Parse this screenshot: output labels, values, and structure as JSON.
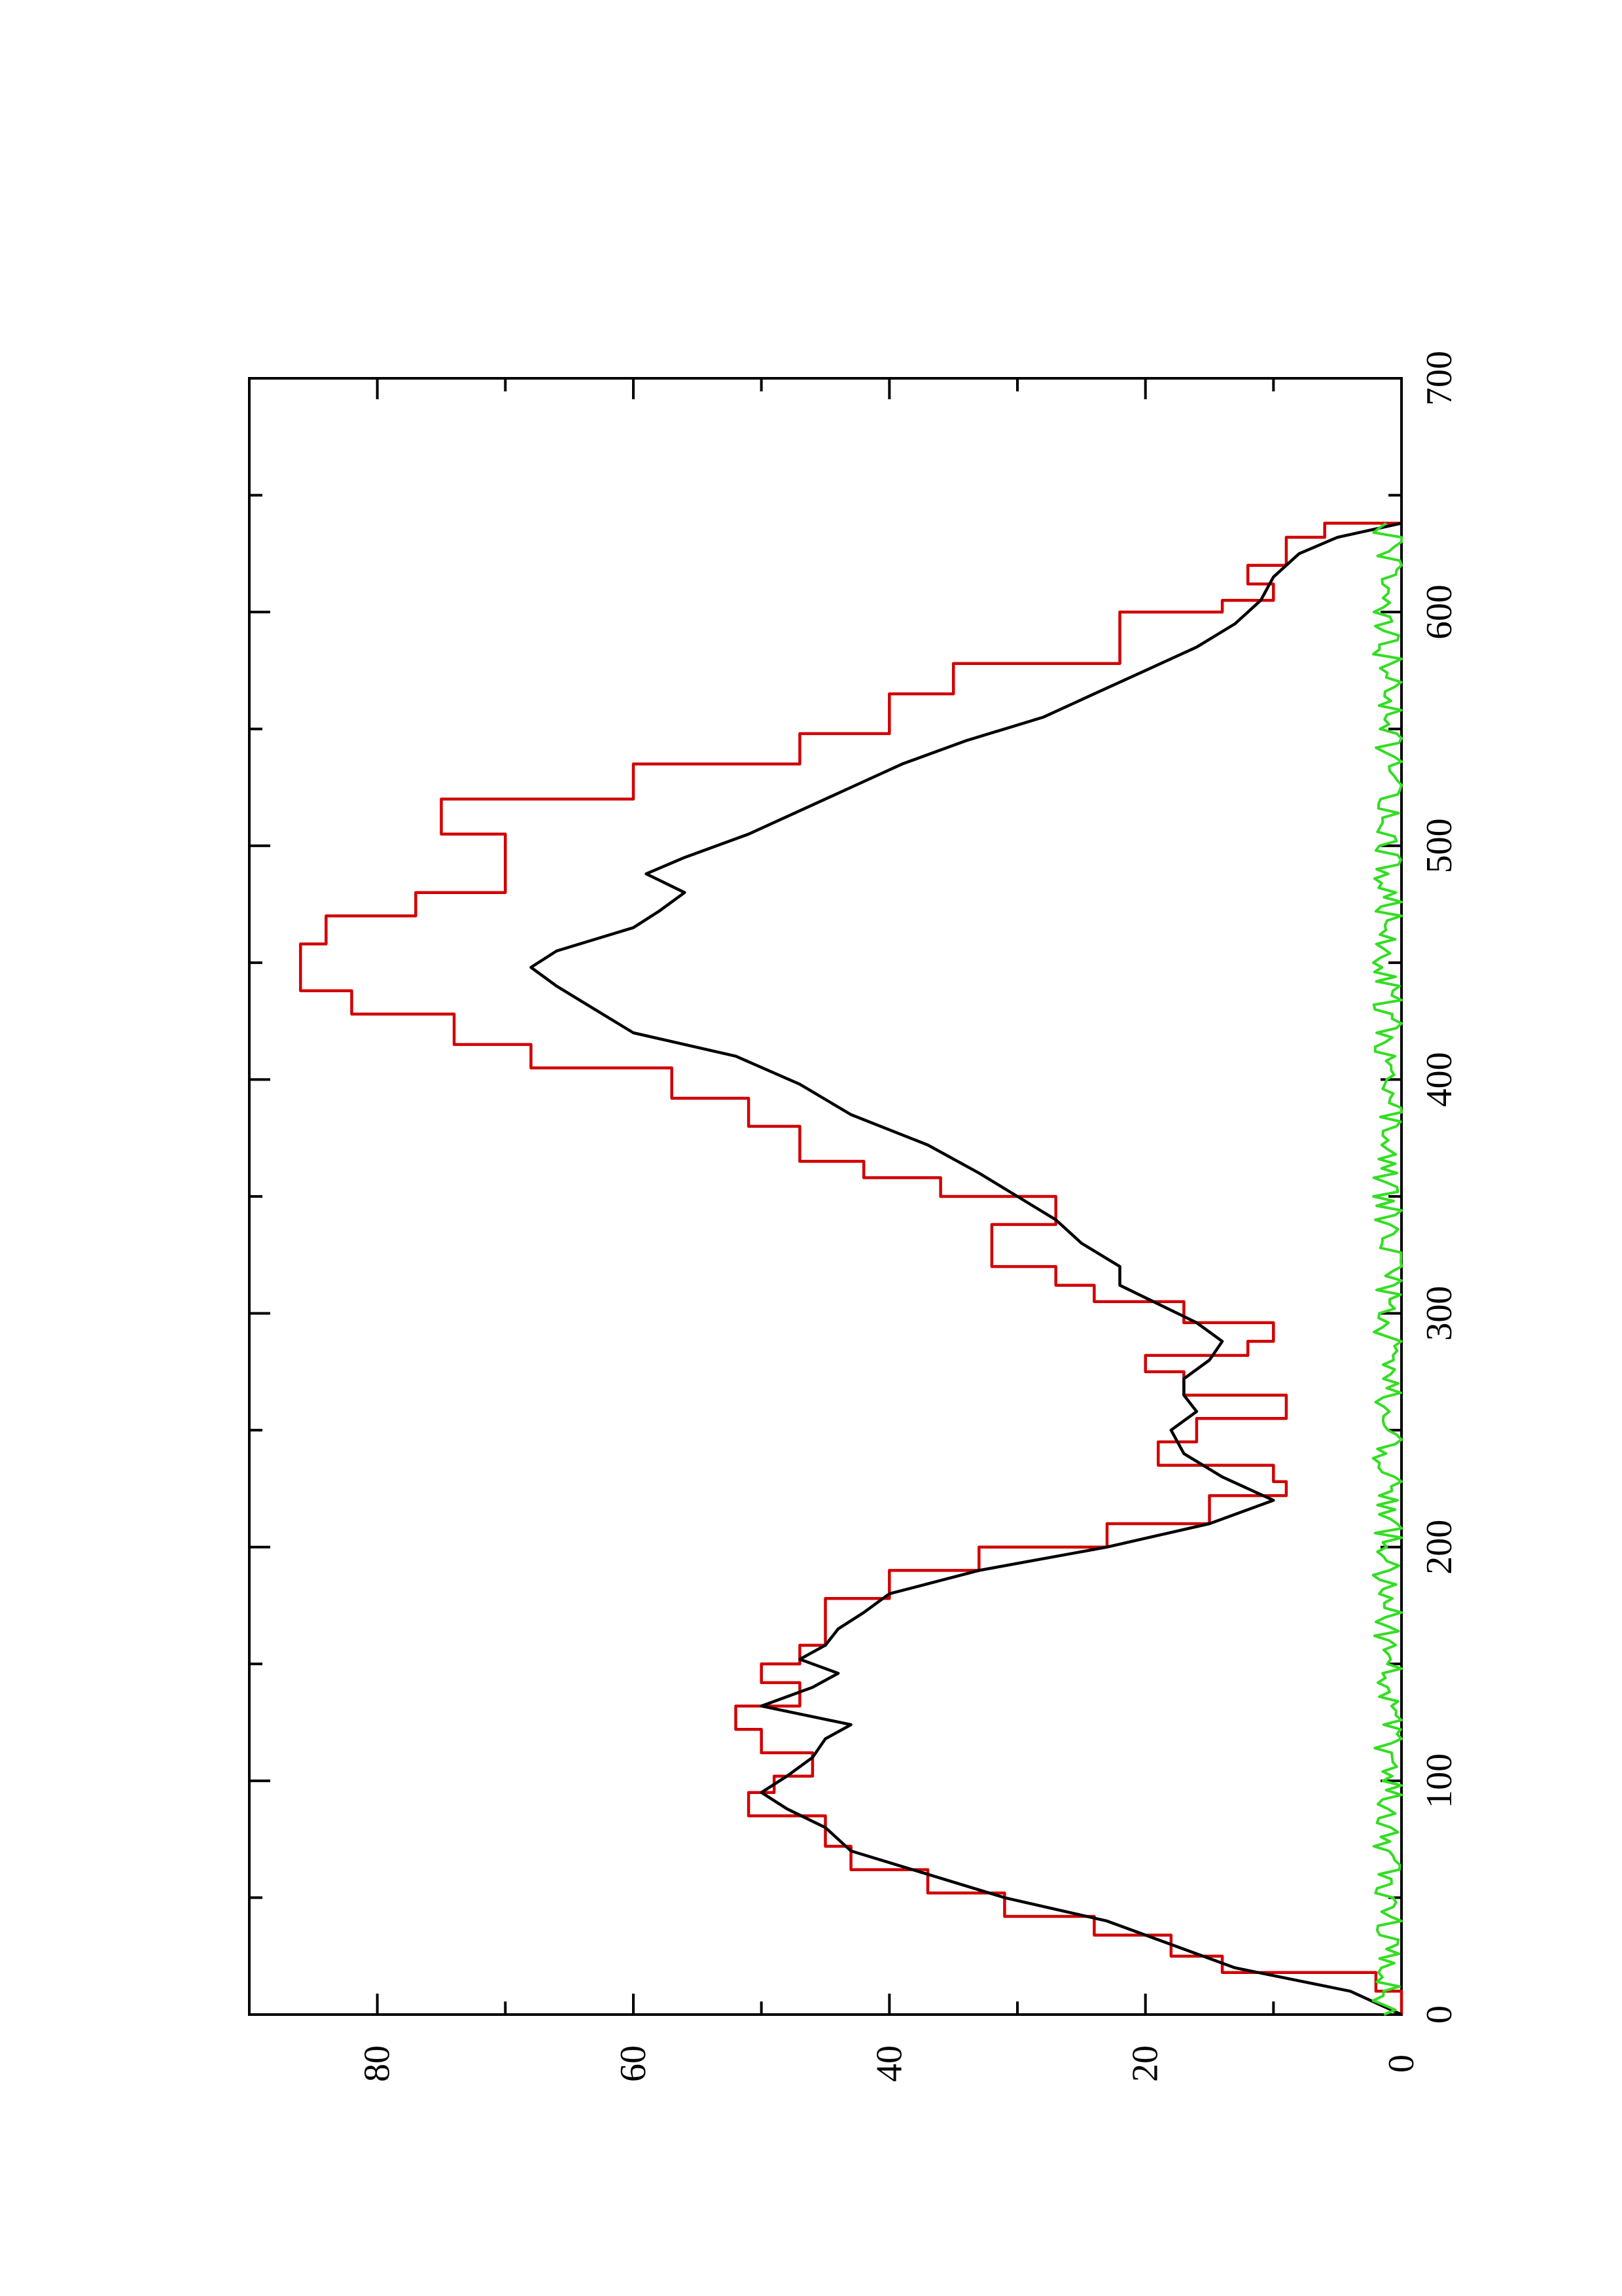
{
  "chart_data": {
    "type": "line",
    "title": "",
    "xlabel": "",
    "ylabel": "",
    "orientation": "rotated-90-counterclockwise",
    "xlim": [
      0,
      700
    ],
    "ylim": [
      0,
      90
    ],
    "x_ticks": [
      0,
      100,
      200,
      300,
      400,
      500,
      600,
      700
    ],
    "x_minor_ticks": [
      50,
      150,
      250,
      350,
      450,
      550,
      650
    ],
    "y_ticks": [
      0,
      20,
      40,
      60,
      80
    ],
    "y_minor_ticks": [
      10,
      30,
      50,
      70,
      90
    ],
    "x_tick_labels": [
      "0",
      "100",
      "200",
      "300",
      "400",
      "500",
      "600",
      "700"
    ],
    "y_tick_labels": [
      "0",
      "20",
      "40",
      "60",
      "80"
    ],
    "grid": false,
    "legend": "none",
    "series": [
      {
        "color": "#d10000",
        "step": true,
        "x": [
          0,
          10,
          18,
          25,
          34,
          42,
          52,
          62,
          72,
          85,
          95,
          102,
          112,
          122,
          132,
          142,
          150,
          158,
          178,
          190,
          200,
          210,
          222,
          228,
          235,
          245,
          255,
          265,
          275,
          282,
          288,
          296,
          305,
          312,
          320,
          338,
          350,
          358,
          365,
          380,
          392,
          405,
          415,
          428,
          438,
          450,
          458,
          470,
          480,
          490,
          505,
          520,
          535,
          548,
          565,
          578,
          600,
          605,
          612,
          620,
          632,
          638
        ],
        "y": [
          0,
          2,
          14,
          18,
          24,
          31,
          37,
          43,
          45,
          51,
          49,
          46,
          50,
          52,
          47,
          50,
          47,
          45,
          40,
          33,
          23,
          15,
          9,
          10,
          19,
          16,
          9,
          17,
          20,
          12,
          10,
          17,
          24,
          27,
          32,
          27,
          36,
          42,
          47,
          51,
          57,
          68,
          74,
          82,
          86,
          86,
          84,
          77,
          70,
          70,
          75,
          60,
          47,
          40,
          35,
          22,
          14,
          10,
          12,
          9,
          6,
          0
        ]
      },
      {
        "color": "#000000",
        "step": false,
        "x": [
          0,
          10,
          20,
          30,
          40,
          50,
          60,
          70,
          80,
          88,
          95,
          102,
          110,
          118,
          124,
          132,
          140,
          146,
          152,
          158,
          165,
          172,
          180,
          190,
          200,
          210,
          220,
          230,
          240,
          250,
          258,
          265,
          272,
          280,
          288,
          296,
          304,
          312,
          320,
          330,
          340,
          350,
          360,
          372,
          385,
          398,
          410,
          420,
          430,
          440,
          448,
          455,
          465,
          472,
          480,
          488,
          495,
          505,
          515,
          525,
          535,
          545,
          555,
          565,
          575,
          585,
          595,
          605,
          615,
          625,
          632,
          638
        ],
        "y": [
          0,
          4,
          13,
          18,
          23,
          31,
          37,
          43,
          45,
          48,
          50,
          48,
          46,
          45,
          43,
          50,
          46,
          44,
          47,
          45,
          44,
          42,
          40,
          33,
          23,
          15,
          10,
          14,
          17,
          18,
          16,
          17,
          17,
          15,
          14,
          16,
          19,
          22,
          22,
          25,
          27,
          30,
          33,
          37,
          43,
          47,
          52,
          60,
          63,
          66,
          68,
          66,
          60,
          58,
          56,
          59,
          56,
          51,
          47,
          43,
          39,
          34,
          28,
          24,
          20,
          16,
          13,
          11,
          10,
          8,
          5,
          0
        ]
      },
      {
        "color": "#33dd22",
        "step": false,
        "noise": true,
        "x_start": 0,
        "x_end": 638,
        "x_step": 2,
        "baseline": 0.6,
        "amplitude": 2.5
      }
    ]
  }
}
